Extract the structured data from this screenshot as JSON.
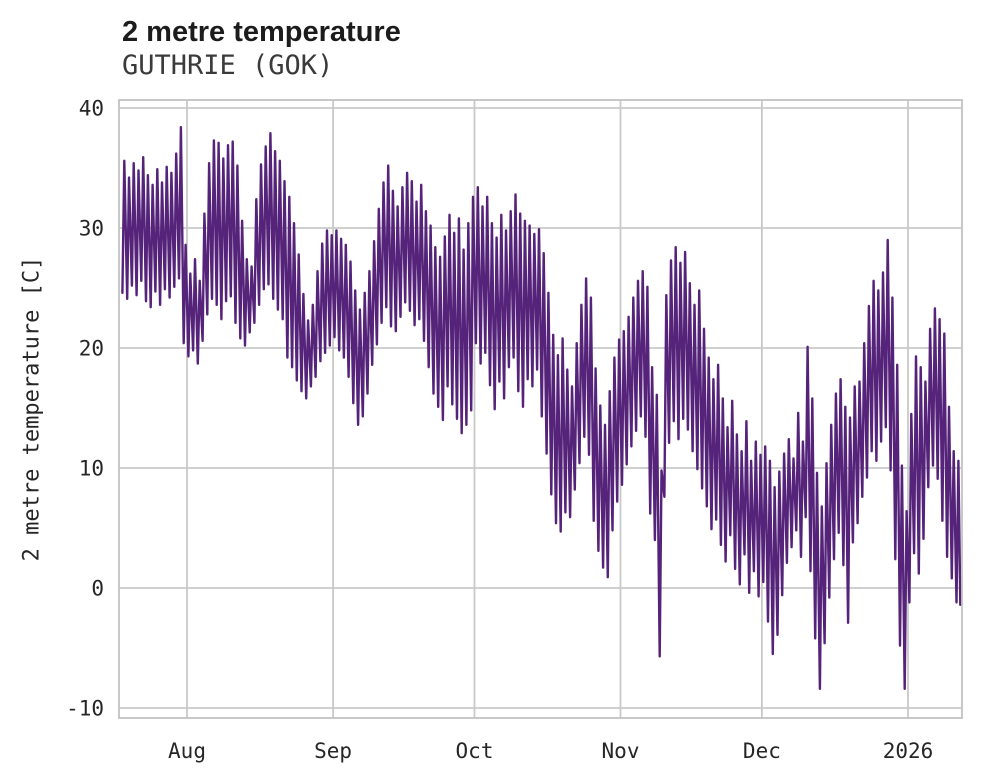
{
  "title": "2 metre temperature",
  "subtitle": "GUTHRIE (GOK)",
  "colors": {
    "line": "#552379",
    "grid": "#c9c9c9",
    "axis_border": "#c2c2c2",
    "title_text": "#1c1c1c",
    "subtitle_text": "#3a3a3a",
    "tick_text": "#262626"
  },
  "y_axis": {
    "label": "2 metre temperature [C]",
    "ticks": [
      40,
      30,
      20,
      10,
      0,
      -10
    ]
  },
  "x_axis": {
    "ticks": [
      {
        "label": "Aug",
        "day": 14
      },
      {
        "label": "Sep",
        "day": 45
      },
      {
        "label": "Oct",
        "day": 75
      },
      {
        "label": "Nov",
        "day": 106
      },
      {
        "label": "Dec",
        "day": 136
      },
      {
        "label": "2026",
        "day": 167
      }
    ]
  },
  "chart_data": {
    "type": "line",
    "series_name": "2 metre temperature",
    "units": "C",
    "ylim": [
      -10.83,
      40.67
    ],
    "x_day_of_aug1": 14,
    "grid": true,
    "legend": false,
    "end_value": -1.4,
    "daily_high": [
      35.6,
      34.2,
      35.4,
      34.8,
      35.9,
      34.4,
      33.6,
      34.9,
      33.8,
      35.1,
      34.6,
      36.2,
      38.4,
      28.6,
      26.2,
      27.4,
      25.6,
      31.2,
      35.4,
      37.3,
      37.1,
      35.8,
      36.9,
      37.2,
      35.2,
      30.6,
      27.4,
      26.8,
      32.4,
      35.3,
      36.8,
      37.9,
      36.4,
      35.6,
      33.9,
      32.6,
      30.4,
      27.8,
      24.5,
      22.3,
      23.6,
      26.4,
      28.7,
      29.8,
      29.4,
      29.8,
      29.1,
      28.6,
      27.2,
      24.8,
      23.2,
      24.6,
      26.4,
      28.9,
      31.6,
      33.8,
      35.2,
      33.1,
      31.8,
      33.4,
      34.6,
      33.9,
      32.2,
      33.6,
      31.4,
      30.2,
      28.4,
      27.6,
      29.3,
      31.1,
      29.6,
      30.8,
      28.2,
      30.4,
      32.6,
      33.4,
      31.8,
      32.6,
      30.4,
      29.2,
      31.1,
      29.8,
      31.4,
      32.8,
      31.2,
      30.6,
      30.2,
      29.5,
      29.9,
      27.9,
      24.6,
      21.1,
      19.4,
      20.8,
      18.2,
      16.8,
      20.4,
      23.6,
      25.8,
      24.2,
      18.3,
      15.2,
      13.6,
      16.4,
      19.2,
      20.7,
      21.4,
      22.6,
      24.2,
      25.6,
      26.4,
      25.1,
      18.4,
      16.1,
      9.8,
      24.4,
      27.3,
      28.4,
      27.1,
      28.0,
      25.4,
      23.6,
      24.8,
      21.6,
      19.2,
      17.4,
      18.6,
      15.8,
      13.4,
      15.6,
      12.8,
      11.4,
      13.9,
      10.6,
      12.2,
      11.1,
      11.8,
      10.6,
      8.4,
      9.7,
      11.2,
      12.4,
      10.8,
      14.6,
      12.2,
      20.1,
      15.8,
      9.6,
      6.8,
      10.4,
      13.6,
      16.2,
      17.4,
      15.1,
      14.2,
      16.8,
      17.2,
      20.4,
      23.5,
      25.6,
      24.8,
      26.3,
      29.0,
      24.2,
      18.6,
      10.2,
      6.4,
      14.5,
      19.3,
      18.4,
      17.2,
      21.6,
      23.3,
      22.4,
      21.2,
      15.1,
      11.4,
      10.6
    ],
    "daily_low": [
      24.6,
      24.1,
      25.2,
      24.4,
      25.6,
      23.9,
      23.4,
      24.7,
      23.6,
      24.9,
      24.2,
      25.1,
      25.8,
      20.4,
      19.3,
      19.8,
      18.7,
      20.6,
      22.8,
      24.1,
      23.6,
      22.4,
      23.9,
      24.3,
      22.1,
      20.8,
      20.2,
      21.3,
      22.1,
      23.6,
      24.9,
      25.3,
      24.1,
      23.2,
      22.4,
      19.2,
      18.4,
      17.3,
      16.4,
      15.8,
      16.8,
      17.6,
      18.9,
      19.6,
      20.2,
      20.9,
      19.8,
      19.2,
      17.6,
      15.4,
      13.6,
      14.3,
      16.2,
      18.6,
      20.3,
      22.1,
      23.4,
      21.8,
      21.4,
      22.6,
      23.8,
      23.1,
      21.9,
      22.4,
      20.6,
      18.4,
      16.2,
      15.1,
      14.0,
      16.8,
      15.3,
      14.1,
      12.9,
      13.6,
      14.8,
      20.4,
      18.7,
      19.6,
      16.9,
      14.9,
      17.2,
      15.8,
      18.4,
      19.2,
      16.4,
      15.1,
      17.4,
      16.8,
      18.2,
      14.3,
      11.2,
      7.8,
      5.4,
      4.7,
      6.3,
      5.9,
      8.2,
      10.4,
      12.6,
      11.1,
      5.6,
      3.1,
      1.7,
      0.9,
      4.8,
      7.2,
      8.6,
      10.3,
      11.8,
      13.1,
      14.3,
      12.6,
      6.2,
      4.0,
      -5.7,
      7.6,
      12.1,
      13.9,
      12.4,
      14.1,
      13.2,
      11.4,
      9.9,
      8.3,
      6.8,
      4.9,
      5.7,
      3.6,
      2.2,
      4.4,
      1.6,
      0.3,
      2.8,
      -0.4,
      1.4,
      -0.7,
      0.5,
      -2.8,
      -5.5,
      -3.9,
      -0.6,
      2.1,
      3.4,
      4.8,
      2.6,
      5.9,
      1.4,
      -4.2,
      -8.4,
      -4.6,
      -0.8,
      2.4,
      4.6,
      1.9,
      -2.9,
      3.8,
      5.4,
      7.6,
      9.2,
      11.4,
      10.6,
      12.2,
      13.4,
      9.8,
      2.4,
      -4.8,
      -8.4,
      -1.2,
      2.9,
      1.2,
      4.1,
      8.4,
      10.2,
      9.1,
      5.6,
      2.6,
      0.8,
      -1.2
    ]
  }
}
